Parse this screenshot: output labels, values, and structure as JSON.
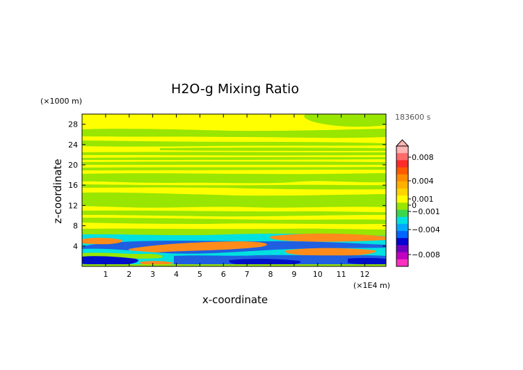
{
  "chart_data": {
    "type": "heatmap",
    "title": "H2O-g Mixing Ratio",
    "xlabel": "x-coordinate",
    "ylabel": "z-coordinate",
    "x_unit": "(×1E4 m)",
    "y_unit": "(×1000 m)",
    "time_label": "183600 s",
    "xlim": [
      0,
      12.9
    ],
    "ylim": [
      0,
      30
    ],
    "x_ticks": [
      "1",
      "2",
      "3",
      "4",
      "5",
      "6",
      "7",
      "8",
      "9",
      "10",
      "11",
      "12"
    ],
    "y_ticks": [
      "4",
      "8",
      "12",
      "16",
      "20",
      "24",
      "28"
    ],
    "colorbar": {
      "tick_labels": [
        "0.008",
        "0.004",
        "0.001",
        "0",
        "−0.001",
        "−0.004",
        "−0.008"
      ],
      "palette_top_to_bottom": [
        "#ffb3b3",
        "#ff6a6a",
        "#ff2a2a",
        "#ff5a00",
        "#ff8c00",
        "#ffb000",
        "#ffd400",
        "#ffff00",
        "#99e600",
        "#3cd64c",
        "#00e0e0",
        "#00a8ff",
        "#0064ff",
        "#0000d0",
        "#7000c0",
        "#c000c0",
        "#ff30c0"
      ]
    },
    "colors": {
      "background": "#ffff00",
      "light_band": "#99e600",
      "cyan": "#00e0e0",
      "blue": "#1f5fe0",
      "dark_blue": "#0010c8",
      "orange": "#ff8c1a"
    }
  }
}
